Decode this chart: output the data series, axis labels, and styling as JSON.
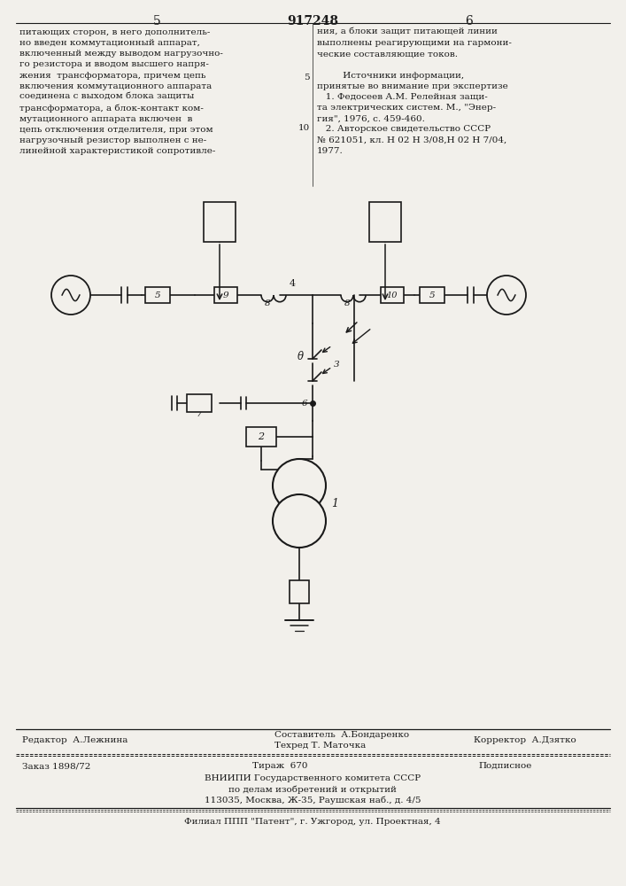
{
  "bg_color": "#f2f0eb",
  "text_color": "#1a1a1a",
  "page_num_left": "5",
  "page_num_center": "917248",
  "page_num_right": "6",
  "text_left_col": "питающих сторон, в него дополнитель-\nно введен коммутационный аппарат,\nвключенный между выводом нагрузочно-\nго резистора и вводом высшего напря-\nжения  трансформатора, причем цепь\nвключения коммутационного аппарата\nсоединена с выходом блока защиты\nтрансформатора, а блок-контакт ком-\nмутационного аппарата включен  в\nцепь отключения отделителя, при этом\nнагрузочный резистор выполнен с не-\nлинейной характеристикой сопротивле-",
  "line_num_5": "5",
  "line_num_10": "10",
  "text_right_col": "ния, а блоки защит питающей линии\nвыполнены реагирующими на гармони-\nческие составляющие токов.\n\n         Источники информации,\nпринятые во внимание при экспертизе\n   1. Федосеев А.М. Релейная защи-\nта электрических систем. М., \"Энер-\nгия\", 1976, с. 459-460.\n   2. Авторское свидетельство СССР\n№ 621051, кл. Н 02 Н 3/08,Н 02 Н 7/04,\n1977.",
  "footer_editor": "Редактор  А.Лежнина",
  "footer_composer": "Составитель  А.Бондаренко",
  "footer_techred": "Техред Т. Маточка",
  "footer_corrector": "Корректор  А.Дзятко",
  "footer_order": "Заказ 1898/72",
  "footer_tirazh": "Тираж  670",
  "footer_podpisnoe": "Подписное",
  "footer_vniipи": "ВНИИПИ Государственного комитета СССР",
  "footer_po_delam": "по делам изобретений и открытий",
  "footer_address": "113035, Москва, Ж-35, Раушская наб., д. 4/5",
  "footer_filial": "Филиал ППП \"Патент\", г. Ужгород, ул. Проектная, 4"
}
